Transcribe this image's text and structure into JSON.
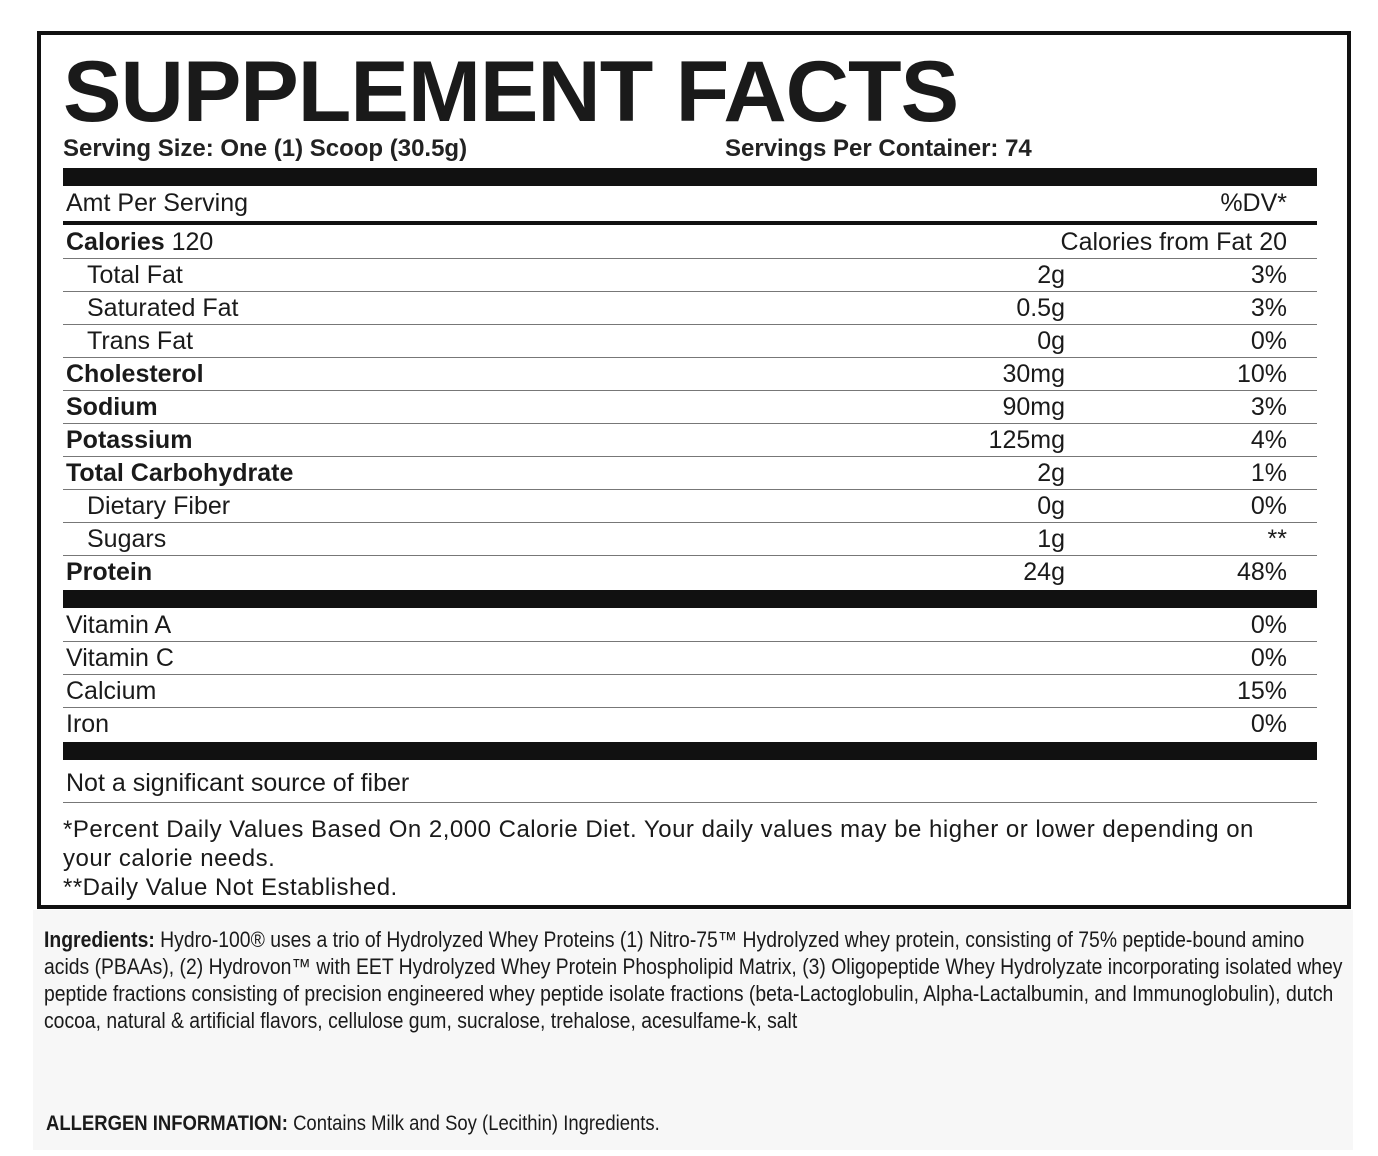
{
  "title": "SUPPLEMENT FACTS",
  "serving_size": "Serving Size: One (1) Scoop (30.5g)",
  "servings_per_container": "Servings Per Container: 74",
  "header": {
    "amt": "Amt Per Serving",
    "dv": "%DV*"
  },
  "calories": {
    "label": "Calories",
    "value": "120",
    "from_fat": "Calories from Fat 20"
  },
  "nutrients": [
    {
      "name": "Total Fat",
      "amount": "2g",
      "dv": "3%",
      "bold": false,
      "indent": true
    },
    {
      "name": "Saturated Fat",
      "amount": "0.5g",
      "dv": "3%",
      "bold": false,
      "indent": true
    },
    {
      "name": "Trans Fat",
      "amount": "0g",
      "dv": "0%",
      "bold": false,
      "indent": true
    },
    {
      "name": "Cholesterol",
      "amount": "30mg",
      "dv": "10%",
      "bold": true,
      "indent": false
    },
    {
      "name": "Sodium",
      "amount": "90mg",
      "dv": "3%",
      "bold": true,
      "indent": false
    },
    {
      "name": "Potassium",
      "amount": "125mg",
      "dv": "4%",
      "bold": true,
      "indent": false
    },
    {
      "name": "Total Carbohydrate",
      "amount": "2g",
      "dv": "1%",
      "bold": true,
      "indent": false
    },
    {
      "name": "Dietary Fiber",
      "amount": "0g",
      "dv": "0%",
      "bold": false,
      "indent": true
    },
    {
      "name": "Sugars",
      "amount": "1g",
      "dv": "**",
      "bold": false,
      "indent": true
    },
    {
      "name": "Protein",
      "amount": "24g",
      "dv": "48%",
      "bold": true,
      "indent": false
    }
  ],
  "vitamins": [
    {
      "name": "Vitamin A",
      "dv": "0%"
    },
    {
      "name": "Vitamin C",
      "dv": "0%"
    },
    {
      "name": "Calcium",
      "dv": "15%"
    },
    {
      "name": "Iron",
      "dv": "0%"
    }
  ],
  "not_significant": "Not a significant source of fiber",
  "footnote1": "*Percent Daily Values Based On 2,000 Calorie Diet. Your daily values may be higher or lower depending on your calorie needs.",
  "footnote2": "**Daily Value Not Established.",
  "ingredients": {
    "label": "Ingredients:",
    "text": " Hydro-100® uses a trio of  Hydrolyzed Whey Proteins (1) Nitro-75™ Hydrolyzed whey protein, consisting of 75% peptide-bound amino acids (PBAAs), (2) Hydrovon™ with EET Hydrolyzed Whey Protein Phospholipid Matrix, (3) Oligopeptide Whey Hydrolyzate incorporating  isolated whey peptide fractions consisting of precision engineered whey peptide isolate fractions (beta-Lactoglobulin, Alpha-Lactalbumin, and Immunoglobulin), dutch cocoa, natural & artificial flavors, cellulose gum, sucralose, trehalose, acesulfame-k, salt"
  },
  "allergen": {
    "label": "ALLERGEN INFORMATION:",
    "text": " Contains Milk and Soy (Lecithin) Ingredients."
  }
}
